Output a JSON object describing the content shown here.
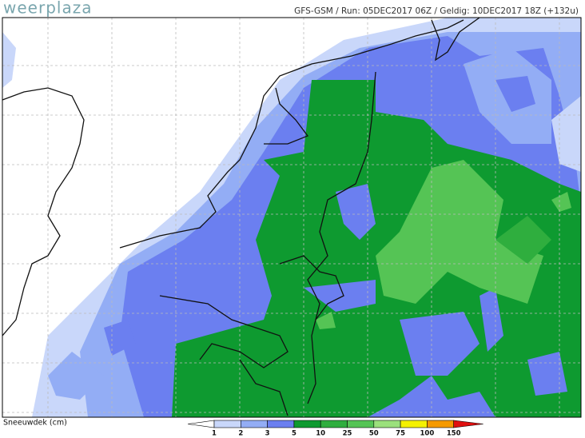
{
  "header": {
    "logo": "weerplaza",
    "run_info": "GFS-GSM / Run: 05DEC2017 06Z / Geldig: 10DEC2017 18Z (+132u)"
  },
  "legend": {
    "label": "Sneeuwdek (cm)",
    "ticks": [
      1,
      2,
      3,
      5,
      10,
      25,
      50,
      75,
      100,
      150
    ],
    "colors": [
      "#ffffff",
      "#c9d7fa",
      "#93adf5",
      "#6b7ff0",
      "#0e9a30",
      "#2fae3e",
      "#55c455",
      "#9be07c",
      "#f5f100",
      "#f59a00",
      "#e01010"
    ]
  }
}
